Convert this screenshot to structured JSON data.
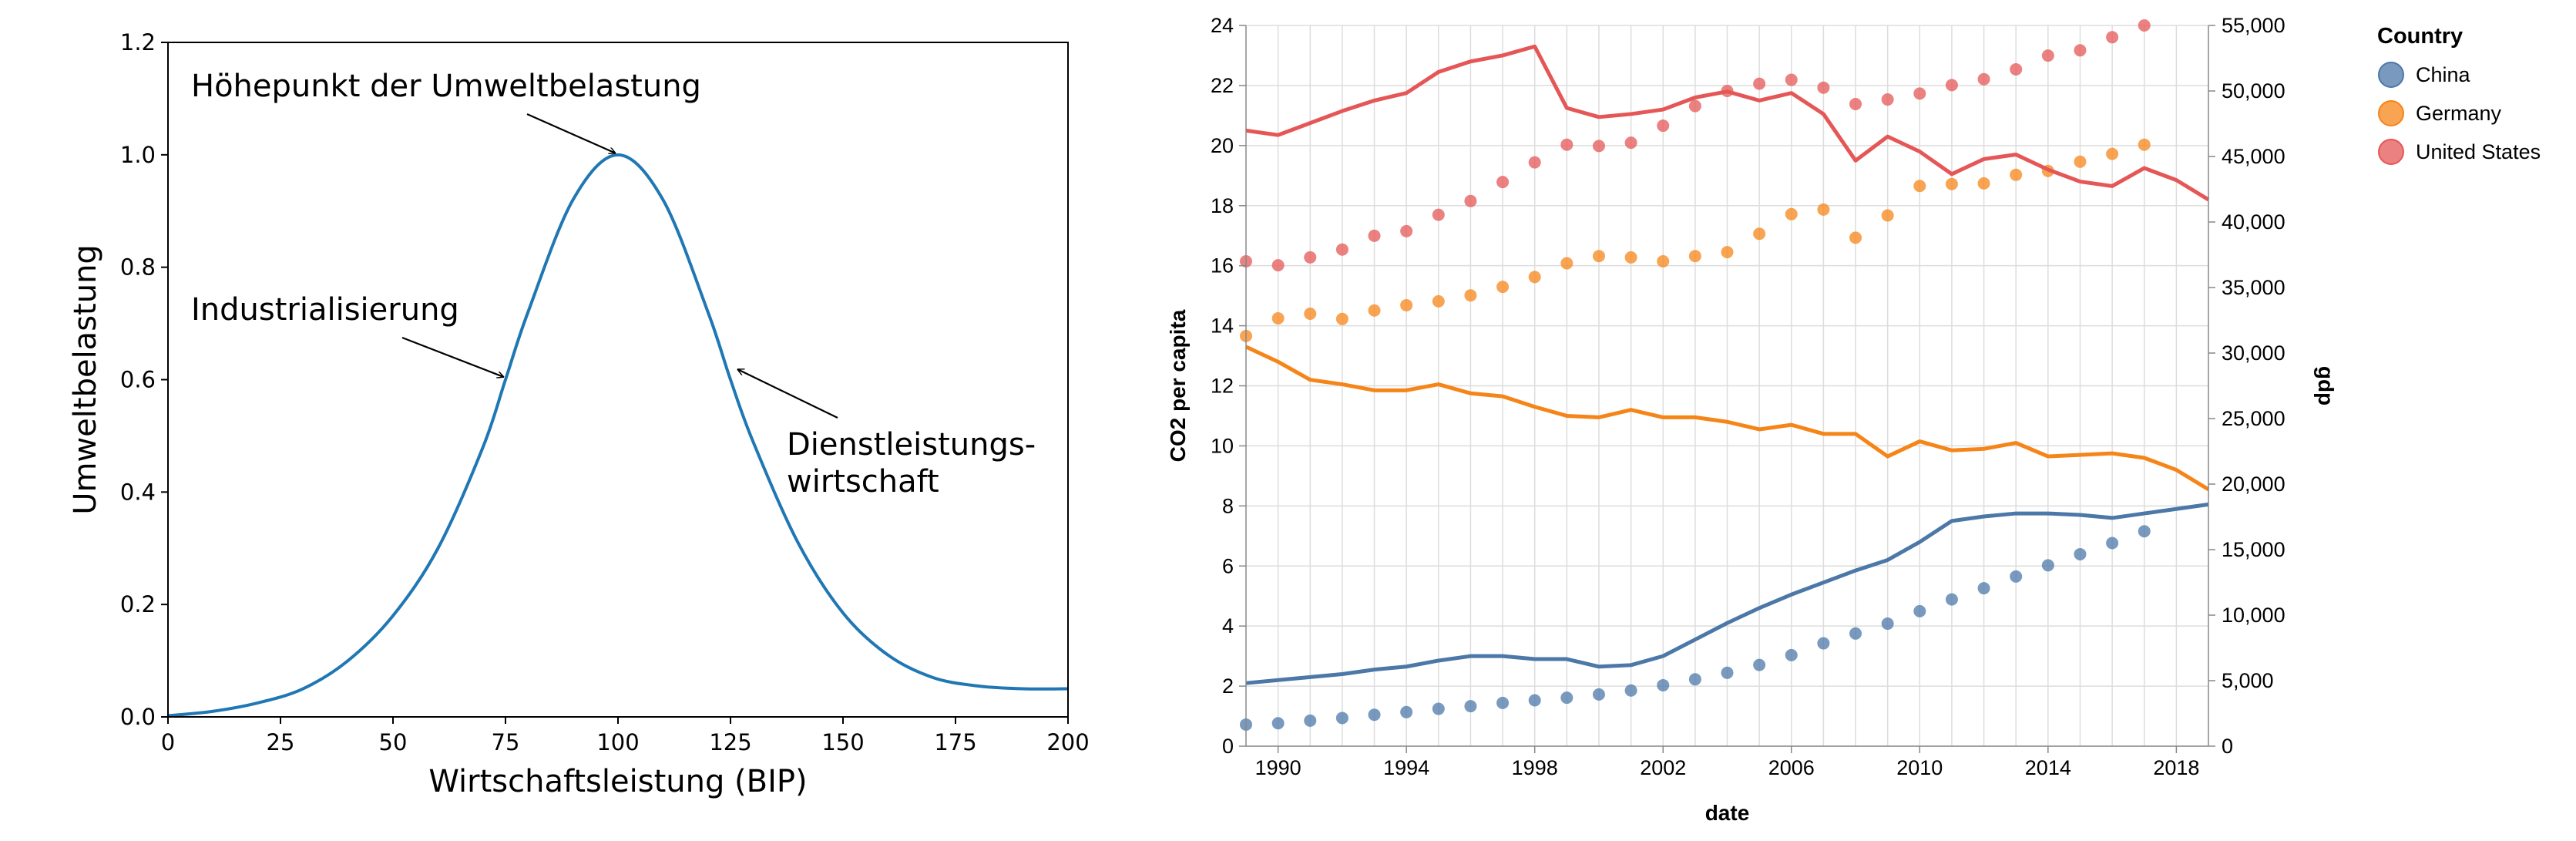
{
  "chart_data": [
    {
      "type": "line",
      "title": "",
      "xlabel": "Wirtschaftsleistung (BIP)",
      "ylabel": "Umweltbelastung",
      "xlim": [
        0,
        200
      ],
      "ylim": [
        0,
        1.2
      ],
      "x_ticks": [
        "0",
        "25",
        "50",
        "75",
        "100",
        "125",
        "150",
        "175",
        "200"
      ],
      "y_ticks": [
        "0.0",
        "0.2",
        "0.4",
        "0.6",
        "0.8",
        "1.0",
        "1.2"
      ],
      "grid": false,
      "series": [
        {
          "color": "#1f77b4",
          "x": [
            0,
            10,
            20,
            30,
            40,
            50,
            60,
            70,
            75,
            80,
            90,
            100,
            110,
            120,
            125,
            130,
            140,
            150,
            160,
            170,
            180,
            190,
            200
          ],
          "values": [
            0.002,
            0.01,
            0.025,
            0.05,
            0.1,
            0.18,
            0.3,
            0.48,
            0.6,
            0.72,
            0.92,
            1.0,
            0.92,
            0.72,
            0.6,
            0.49,
            0.31,
            0.185,
            0.11,
            0.07,
            0.055,
            0.05,
            0.05
          ]
        }
      ],
      "annotations": [
        {
          "text": "Höhepunkt der Umweltbelastung",
          "x": 100,
          "y": 1.0
        },
        {
          "text": "Industrialisierung",
          "x": 75,
          "y": 0.61
        },
        {
          "text": "Dienstleistungs-\nwirtschaft",
          "x": 126,
          "y": 0.62
        }
      ]
    },
    {
      "type": "line",
      "title": "",
      "xlabel": "date",
      "ylabel": "CO2 per capita",
      "y2label": "gdp",
      "xlim": [
        1989,
        2019
      ],
      "ylim": [
        0,
        24
      ],
      "y2lim": [
        0,
        55000
      ],
      "x_ticks": [
        "1990",
        "1994",
        "1998",
        "2002",
        "2006",
        "2010",
        "2014",
        "2018"
      ],
      "y_ticks": [
        "0",
        "2",
        "4",
        "6",
        "8",
        "10",
        "12",
        "14",
        "16",
        "18",
        "20",
        "22",
        "24"
      ],
      "y2_ticks": [
        "0",
        "5,000",
        "10,000",
        "15,000",
        "20,000",
        "25,000",
        "30,000",
        "35,000",
        "40,000",
        "45,000",
        "50,000",
        "55,000"
      ],
      "grid": true,
      "legend_title": "Country",
      "legend_position": "right",
      "years": [
        1989,
        1990,
        1991,
        1992,
        1993,
        1994,
        1995,
        1996,
        1997,
        1998,
        1999,
        2000,
        2001,
        2002,
        2003,
        2004,
        2005,
        2006,
        2007,
        2008,
        2009,
        2010,
        2011,
        2012,
        2013,
        2014,
        2015,
        2016,
        2017,
        2018,
        2019
      ],
      "series": [
        {
          "name": "China",
          "color": "#4c78a8",
          "co2": [
            2.1,
            2.2,
            2.3,
            2.4,
            2.55,
            2.65,
            2.85,
            3.0,
            3.0,
            2.9,
            2.9,
            2.65,
            2.7,
            3.0,
            3.55,
            4.1,
            4.6,
            5.05,
            5.45,
            5.85,
            6.2,
            6.8,
            7.5,
            7.65,
            7.75,
            7.75,
            7.7,
            7.6,
            7.75,
            7.9,
            8.05
          ],
          "gdp_years": [
            1989,
            1990,
            1991,
            1992,
            1993,
            1994,
            1995,
            1996,
            1997,
            1998,
            1999,
            2000,
            2001,
            2002,
            2003,
            2004,
            2005,
            2006,
            2007,
            2008,
            2009,
            2010,
            2011,
            2012,
            2013,
            2014,
            2015,
            2016,
            2017
          ],
          "gdp": [
            1650,
            1750,
            1950,
            2150,
            2400,
            2600,
            2850,
            3050,
            3300,
            3500,
            3700,
            3950,
            4250,
            4650,
            5100,
            5600,
            6200,
            6950,
            7850,
            8600,
            9350,
            10300,
            11200,
            12050,
            12950,
            13800,
            14650,
            15500,
            16400
          ]
        },
        {
          "name": "Germany",
          "color": "#f58518",
          "co2": [
            13.3,
            12.8,
            12.2,
            12.05,
            11.85,
            11.85,
            12.05,
            11.75,
            11.65,
            11.3,
            11.0,
            10.95,
            11.2,
            10.95,
            10.95,
            10.8,
            10.55,
            10.7,
            10.4,
            10.4,
            9.65,
            10.15,
            9.85,
            9.9,
            10.1,
            9.65,
            9.7,
            9.75,
            9.6,
            9.2,
            8.55
          ],
          "gdp_years": [
            1989,
            1990,
            1991,
            1992,
            1993,
            1994,
            1995,
            1996,
            1997,
            1998,
            1999,
            2000,
            2001,
            2002,
            2003,
            2004,
            2005,
            2006,
            2007,
            2008,
            2009,
            2010,
            2011,
            2012,
            2013,
            2014,
            2015,
            2016,
            2017
          ],
          "gdp": [
            31300,
            32650,
            33000,
            32600,
            33250,
            33650,
            33950,
            34400,
            35050,
            35800,
            36850,
            37400,
            37300,
            37000,
            37400,
            37700,
            39100,
            40600,
            40950,
            38800,
            40500,
            42750,
            42900,
            42950,
            43600,
            43900,
            44600,
            45200,
            45900
          ]
        },
        {
          "name": "United States",
          "color": "#e45756",
          "co2": [
            20.5,
            20.35,
            20.75,
            21.15,
            21.5,
            21.75,
            22.45,
            22.8,
            23.0,
            23.3,
            21.25,
            20.95,
            21.05,
            21.2,
            21.6,
            21.8,
            21.5,
            21.75,
            21.05,
            19.5,
            20.3,
            19.8,
            19.05,
            19.55,
            19.7,
            19.2,
            18.8,
            18.65,
            19.25,
            18.85,
            18.2
          ],
          "gdp_years": [
            1989,
            1990,
            1991,
            1992,
            1993,
            1994,
            1995,
            1996,
            1997,
            1998,
            1999,
            2000,
            2001,
            2002,
            2003,
            2004,
            2005,
            2006,
            2007,
            2008,
            2009,
            2010,
            2011,
            2012,
            2013,
            2014,
            2015,
            2016,
            2017
          ],
          "gdp": [
            37000,
            36700,
            37300,
            37900,
            38950,
            39300,
            40550,
            41600,
            43050,
            44550,
            45900,
            45800,
            46050,
            47350,
            48850,
            50000,
            50550,
            50850,
            50250,
            49000,
            49350,
            49800,
            50450,
            50900,
            51650,
            52700,
            53100,
            54100,
            55000
          ]
        }
      ]
    }
  ]
}
